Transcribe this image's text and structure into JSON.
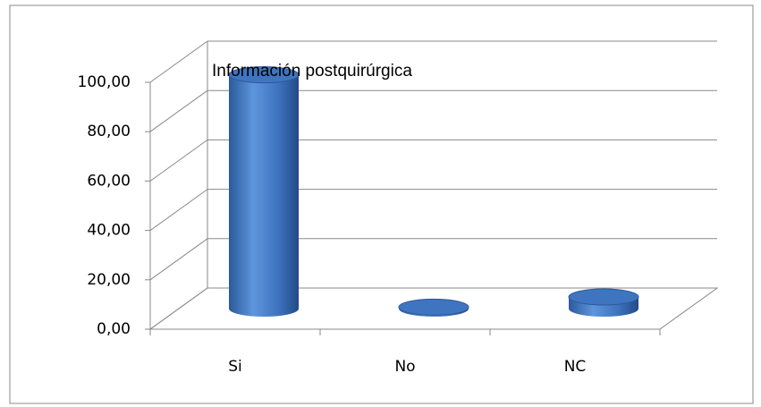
{
  "chart_data": {
    "type": "bar",
    "title": "Información postquirúrgica",
    "categories": [
      "Si",
      "No",
      "NC"
    ],
    "values": [
      94.7,
      0.6,
      4.7
    ],
    "color": "#3f74c0",
    "ylim": [
      0,
      100
    ],
    "yticks": [
      {
        "value": 0,
        "label": "0,00"
      },
      {
        "value": 20,
        "label": "20,00"
      },
      {
        "value": 40,
        "label": "40,00"
      },
      {
        "value": 60,
        "label": "60,00"
      },
      {
        "value": 80,
        "label": "80,00"
      },
      {
        "value": 100,
        "label": "100,00"
      }
    ],
    "grid": true
  }
}
